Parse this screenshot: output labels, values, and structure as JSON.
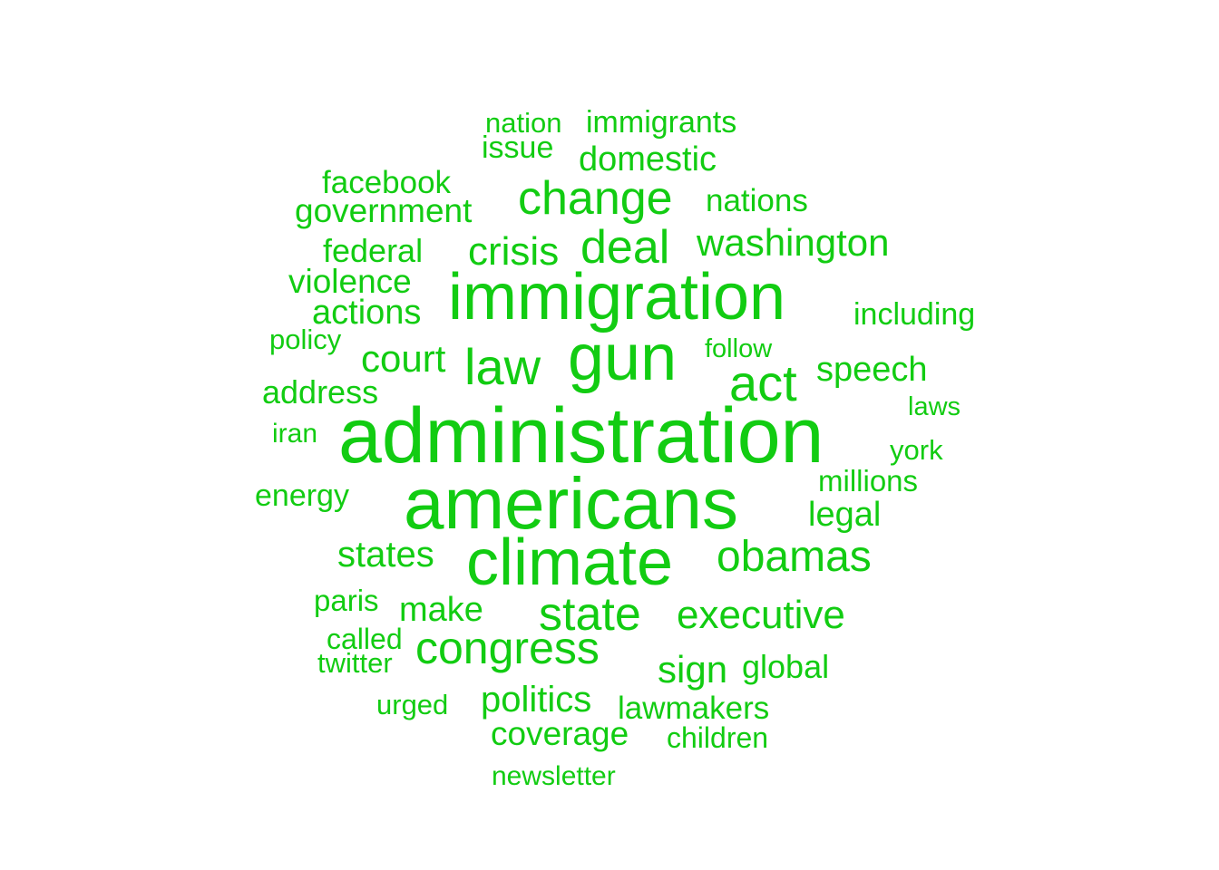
{
  "chart_data": {
    "type": "wordcloud",
    "color": "#12cc12",
    "words": [
      {
        "text": "administration",
        "weight": 10
      },
      {
        "text": "americans",
        "weight": 9
      },
      {
        "text": "immigration",
        "weight": 8
      },
      {
        "text": "climate",
        "weight": 8
      },
      {
        "text": "gun",
        "weight": 7.5
      },
      {
        "text": "law",
        "weight": 6
      },
      {
        "text": "act",
        "weight": 6
      },
      {
        "text": "deal",
        "weight": 5
      },
      {
        "text": "change",
        "weight": 5
      },
      {
        "text": "state",
        "weight": 5
      },
      {
        "text": "congress",
        "weight": 5
      },
      {
        "text": "obamas",
        "weight": 4.5
      },
      {
        "text": "crisis",
        "weight": 4
      },
      {
        "text": "executive",
        "weight": 4
      },
      {
        "text": "washington",
        "weight": 4
      },
      {
        "text": "court",
        "weight": 4
      },
      {
        "text": "states",
        "weight": 4
      },
      {
        "text": "politics",
        "weight": 4
      },
      {
        "text": "sign",
        "weight": 4
      },
      {
        "text": "make",
        "weight": 3.5
      },
      {
        "text": "speech",
        "weight": 3.5
      },
      {
        "text": "legal",
        "weight": 3.5
      },
      {
        "text": "actions",
        "weight": 3.5
      },
      {
        "text": "domestic",
        "weight": 3.5
      },
      {
        "text": "government",
        "weight": 3.5
      },
      {
        "text": "coverage",
        "weight": 3.5
      },
      {
        "text": "address",
        "weight": 3.3
      },
      {
        "text": "nations",
        "weight": 3.2
      },
      {
        "text": "violence",
        "weight": 3.2
      },
      {
        "text": "facebook",
        "weight": 3.2
      },
      {
        "text": "federal",
        "weight": 3.2
      },
      {
        "text": "lawmakers",
        "weight": 3.2
      },
      {
        "text": "immigrants",
        "weight": 3
      },
      {
        "text": "global",
        "weight": 3
      },
      {
        "text": "energy",
        "weight": 3
      },
      {
        "text": "issue",
        "weight": 3
      },
      {
        "text": "including",
        "weight": 3
      },
      {
        "text": "millions",
        "weight": 3
      },
      {
        "text": "paris",
        "weight": 2.8
      },
      {
        "text": "nation",
        "weight": 2.8
      },
      {
        "text": "children",
        "weight": 2.8
      },
      {
        "text": "called",
        "weight": 2.8
      },
      {
        "text": "urged",
        "weight": 2.7
      },
      {
        "text": "policy",
        "weight": 2.7
      },
      {
        "text": "newsletter",
        "weight": 2.7
      },
      {
        "text": "twitter",
        "weight": 2.7
      },
      {
        "text": "york",
        "weight": 2.7
      },
      {
        "text": "iran",
        "weight": 2.6
      },
      {
        "text": "follow",
        "weight": 2.5
      },
      {
        "text": "laws",
        "weight": 2.5
      }
    ]
  }
}
